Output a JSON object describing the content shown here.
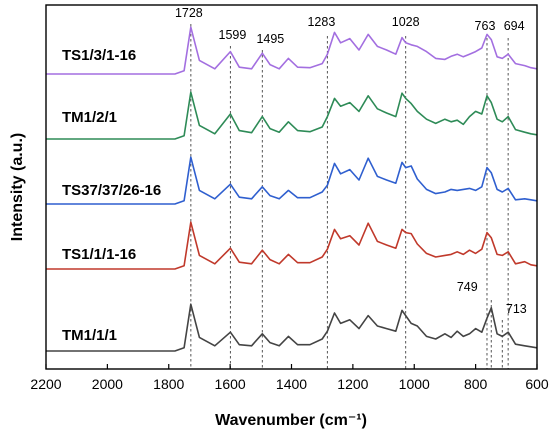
{
  "chart_data": {
    "type": "line",
    "xlabel": "Wavenumber (cm⁻¹)",
    "ylabel": "Intensity (a.u.)",
    "xlim": [
      2200,
      600
    ],
    "x_reversed": true,
    "x_ticks": [
      2200,
      2000,
      1800,
      1600,
      1400,
      1200,
      1000,
      800,
      600
    ],
    "grid": false,
    "legend": "none",
    "peak_markers": [
      {
        "x": 1728,
        "label": "1728"
      },
      {
        "x": 1599,
        "label": "1599"
      },
      {
        "x": 1495,
        "label": "1495"
      },
      {
        "x": 1283,
        "label": "1283"
      },
      {
        "x": 1028,
        "label": "1028"
      },
      {
        "x": 763,
        "label": "763"
      },
      {
        "x": 694,
        "label": "694"
      },
      {
        "x": 749,
        "label": "749"
      },
      {
        "x": 713,
        "label": "713"
      }
    ],
    "series": [
      {
        "name": "TS1/3/1-16",
        "color": "#a36fe0",
        "x": [
          1780,
          1750,
          1728,
          1700,
          1650,
          1599,
          1570,
          1530,
          1495,
          1470,
          1440,
          1410,
          1380,
          1340,
          1300,
          1283,
          1260,
          1240,
          1210,
          1180,
          1150,
          1120,
          1090,
          1060,
          1040,
          1028,
          1010,
          990,
          960,
          930,
          900,
          880,
          860,
          840,
          820,
          800,
          780,
          763,
          749,
          730,
          713,
          694,
          670,
          640,
          620,
          600
        ],
        "y": [
          0.02,
          0.08,
          0.92,
          0.28,
          0.12,
          0.45,
          0.15,
          0.12,
          0.42,
          0.2,
          0.12,
          0.32,
          0.15,
          0.14,
          0.22,
          0.4,
          0.82,
          0.62,
          0.7,
          0.48,
          0.78,
          0.55,
          0.48,
          0.4,
          0.72,
          0.62,
          0.58,
          0.55,
          0.45,
          0.32,
          0.3,
          0.36,
          0.4,
          0.35,
          0.4,
          0.45,
          0.52,
          0.78,
          0.68,
          0.35,
          0.32,
          0.4,
          0.22,
          0.18,
          0.14,
          0.12
        ]
      },
      {
        "name": "TM1/2/1",
        "color": "#2e8b57",
        "x": [
          1780,
          1750,
          1728,
          1700,
          1650,
          1599,
          1570,
          1530,
          1495,
          1470,
          1440,
          1410,
          1380,
          1340,
          1300,
          1283,
          1260,
          1240,
          1210,
          1180,
          1150,
          1120,
          1090,
          1060,
          1040,
          1028,
          1010,
          990,
          960,
          930,
          900,
          880,
          860,
          840,
          820,
          800,
          780,
          763,
          749,
          730,
          713,
          694,
          670,
          640,
          620,
          600
        ],
        "y": [
          0.02,
          0.08,
          0.92,
          0.28,
          0.12,
          0.5,
          0.18,
          0.14,
          0.45,
          0.22,
          0.15,
          0.35,
          0.18,
          0.16,
          0.25,
          0.45,
          0.8,
          0.65,
          0.72,
          0.55,
          0.85,
          0.6,
          0.52,
          0.45,
          0.9,
          0.8,
          0.7,
          0.55,
          0.4,
          0.32,
          0.4,
          0.35,
          0.38,
          0.3,
          0.45,
          0.55,
          0.5,
          0.85,
          0.72,
          0.4,
          0.35,
          0.45,
          0.2,
          0.15,
          0.12,
          0.1
        ]
      },
      {
        "name": "TS37/37/26-16",
        "color": "#2f5fcf",
        "x": [
          1780,
          1750,
          1728,
          1700,
          1650,
          1599,
          1570,
          1530,
          1495,
          1470,
          1440,
          1410,
          1380,
          1340,
          1300,
          1283,
          1260,
          1240,
          1210,
          1180,
          1150,
          1120,
          1090,
          1060,
          1040,
          1028,
          1010,
          990,
          960,
          930,
          900,
          880,
          860,
          840,
          820,
          800,
          780,
          763,
          749,
          730,
          713,
          694,
          670,
          640,
          620,
          600
        ],
        "y": [
          0.02,
          0.08,
          0.92,
          0.28,
          0.12,
          0.4,
          0.15,
          0.12,
          0.35,
          0.18,
          0.12,
          0.28,
          0.14,
          0.14,
          0.25,
          0.38,
          0.8,
          0.6,
          0.68,
          0.48,
          0.9,
          0.55,
          0.48,
          0.42,
          0.82,
          0.72,
          0.75,
          0.5,
          0.3,
          0.22,
          0.25,
          0.3,
          0.28,
          0.3,
          0.32,
          0.28,
          0.35,
          0.72,
          0.62,
          0.3,
          0.25,
          0.32,
          0.1,
          0.12,
          0.1,
          0.08
        ]
      },
      {
        "name": "TS1/1/1-16",
        "color": "#c0392b",
        "x": [
          1780,
          1750,
          1728,
          1700,
          1650,
          1599,
          1570,
          1530,
          1495,
          1470,
          1440,
          1410,
          1380,
          1340,
          1300,
          1283,
          1260,
          1240,
          1210,
          1180,
          1150,
          1120,
          1090,
          1060,
          1040,
          1028,
          1010,
          990,
          960,
          930,
          900,
          880,
          860,
          840,
          820,
          800,
          780,
          763,
          749,
          730,
          713,
          694,
          670,
          640,
          620,
          600
        ],
        "y": [
          0.02,
          0.08,
          0.92,
          0.28,
          0.12,
          0.42,
          0.15,
          0.12,
          0.38,
          0.2,
          0.12,
          0.3,
          0.14,
          0.14,
          0.25,
          0.4,
          0.78,
          0.6,
          0.66,
          0.48,
          0.9,
          0.55,
          0.48,
          0.42,
          0.78,
          0.72,
          0.7,
          0.5,
          0.32,
          0.25,
          0.28,
          0.3,
          0.35,
          0.3,
          0.38,
          0.32,
          0.4,
          0.72,
          0.62,
          0.3,
          0.28,
          0.35,
          0.12,
          0.16,
          0.1,
          0.08
        ]
      },
      {
        "name": "TM1/1/1",
        "color": "#444444",
        "x": [
          1780,
          1750,
          1728,
          1700,
          1650,
          1599,
          1570,
          1530,
          1495,
          1470,
          1440,
          1410,
          1380,
          1340,
          1300,
          1283,
          1260,
          1240,
          1210,
          1180,
          1150,
          1120,
          1090,
          1060,
          1040,
          1028,
          1010,
          990,
          960,
          930,
          900,
          880,
          860,
          840,
          820,
          800,
          780,
          763,
          749,
          730,
          713,
          694,
          670,
          640,
          620,
          600
        ],
        "y": [
          0.02,
          0.08,
          0.92,
          0.28,
          0.12,
          0.38,
          0.14,
          0.12,
          0.35,
          0.18,
          0.12,
          0.3,
          0.14,
          0.14,
          0.25,
          0.4,
          0.75,
          0.55,
          0.62,
          0.45,
          0.7,
          0.5,
          0.45,
          0.4,
          0.8,
          0.7,
          0.55,
          0.5,
          0.3,
          0.25,
          0.35,
          0.28,
          0.4,
          0.3,
          0.35,
          0.45,
          0.38,
          0.65,
          0.85,
          0.35,
          0.3,
          0.38,
          0.15,
          0.12,
          0.1,
          0.08
        ]
      }
    ]
  }
}
